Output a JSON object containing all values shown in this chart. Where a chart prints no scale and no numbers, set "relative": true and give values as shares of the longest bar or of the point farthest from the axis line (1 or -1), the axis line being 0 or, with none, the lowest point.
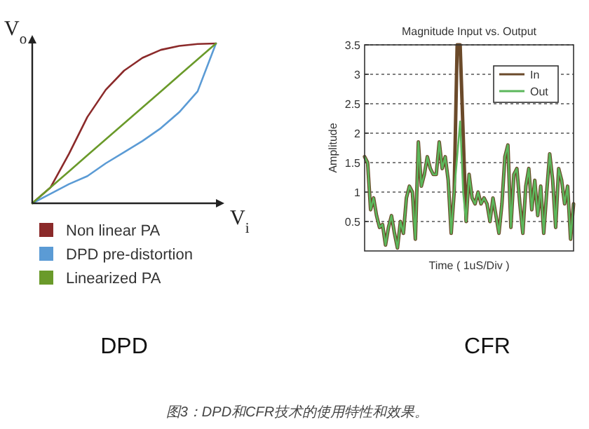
{
  "chart_data": [
    {
      "type": "line",
      "relative": true,
      "xlabel": "V$_{i}$",
      "ylabel": "V$_{o}$",
      "legend": "bottom",
      "annotations": [
        "DPD"
      ],
      "categories": [
        null,
        null,
        null,
        null,
        null,
        null,
        null,
        null,
        null,
        null,
        null
      ],
      "series": [
        {
          "name": "Non linear PA",
          "color": "#8b2a2a",
          "values": [
            0,
            0.1,
            0.31,
            0.54,
            0.71,
            0.83,
            0.91,
            0.96,
            0.985,
            0.997,
            1
          ]
        },
        {
          "name": "DPD pre-distortion",
          "color": "#5b9bd5",
          "values": [
            0,
            0.06,
            0.12,
            0.17,
            0.25,
            0.32,
            0.39,
            0.47,
            0.57,
            0.7,
            1
          ]
        },
        {
          "name": "Linearized PA",
          "color": "#6a9a2a",
          "values": [
            0,
            0.1,
            0.2,
            0.3,
            0.4,
            0.5,
            0.6,
            0.7,
            0.8,
            0.9,
            1
          ]
        }
      ]
    },
    {
      "type": "line",
      "title": "Magnitude Input vs. Output",
      "xlabel": "Time ( 1uS/Div )",
      "ylabel": "Amplitude",
      "annotations": [
        "CFR"
      ],
      "categories": [
        null,
        null,
        null,
        null,
        null,
        null,
        null,
        null,
        null,
        null,
        null,
        null,
        null,
        null,
        null,
        null,
        null,
        null,
        null,
        null,
        null,
        null,
        null,
        null,
        null,
        null,
        null,
        null,
        null,
        null,
        null,
        null,
        null,
        null,
        null,
        null,
        null,
        null,
        null,
        null,
        null,
        null,
        null,
        null,
        null,
        null,
        null,
        null,
        null,
        null,
        null,
        null,
        null,
        null,
        null,
        null,
        null,
        null,
        null,
        null,
        null,
        null,
        null,
        null,
        null,
        null,
        null,
        null,
        null,
        null,
        null
      ],
      "ylim": [
        0,
        3.5
      ],
      "yticks": [
        0.5,
        1,
        1.5,
        2,
        2.5,
        3,
        3.5
      ],
      "grid": "y",
      "legend": "top right",
      "series": [
        {
          "name": "In",
          "color": "#6b4a2a",
          "values": [
            1.6,
            1.5,
            0.7,
            0.9,
            0.6,
            0.4,
            0.45,
            0.1,
            0.4,
            0.6,
            0.3,
            0.05,
            0.5,
            0.3,
            0.9,
            1.1,
            1,
            0.2,
            1.85,
            1.1,
            1.3,
            1.6,
            1.4,
            1.3,
            1.3,
            1.85,
            1.4,
            1.6,
            1.2,
            0.3,
            1,
            3.5,
            3.5,
            2,
            0.5,
            1.3,
            0.9,
            0.8,
            1,
            0.8,
            0.9,
            0.8,
            0.5,
            0.9,
            0.6,
            0.3,
            0.8,
            1.6,
            1.8,
            0.4,
            1.3,
            1.4,
            0.8,
            0.3,
            1.1,
            1.4,
            0.7,
            1.2,
            0.6,
            1.1,
            0.3,
            1,
            1.65,
            1.2,
            0.4,
            1.4,
            1.2,
            0.8,
            1.1,
            0.2,
            0.8
          ]
        },
        {
          "name": "Out",
          "color": "#5cb85c",
          "values": [
            1.6,
            1.5,
            0.7,
            0.9,
            0.6,
            0.4,
            0.45,
            0.1,
            0.4,
            0.6,
            0.3,
            0.05,
            0.5,
            0.3,
            0.9,
            1.1,
            1,
            0.2,
            1.85,
            1.1,
            1.3,
            1.6,
            1.4,
            1.3,
            1.3,
            1.85,
            1.4,
            1.6,
            1.2,
            0.3,
            1,
            1.6,
            2.2,
            1,
            0.5,
            1.3,
            0.9,
            0.8,
            1,
            0.8,
            0.9,
            0.8,
            0.5,
            0.9,
            0.6,
            0.3,
            0.8,
            1.6,
            1.8,
            0.4,
            1.3,
            1.4,
            0.8,
            0.3,
            1.1,
            1.4,
            0.7,
            1.2,
            0.6,
            1.1,
            0.3,
            1,
            1.65,
            1.2,
            0.4,
            1.4,
            1.2,
            0.8,
            1.1,
            0.2,
            0.8
          ]
        }
      ]
    },
    {
      "type": "other",
      "title": "图3：DPD和CFR技术的使用特性和效果。"
    }
  ]
}
